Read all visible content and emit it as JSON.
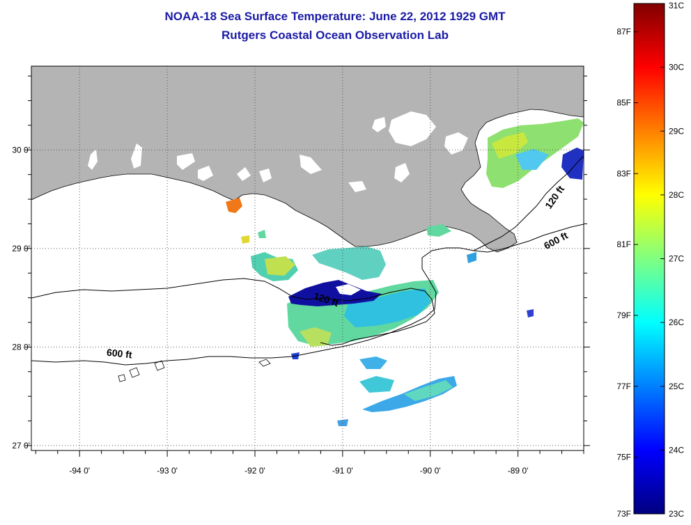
{
  "title": "NOAA-18 Sea Surface Temperature:  June 22, 2012 1929 GMT",
  "subtitle": "Rutgers Coastal Ocean Observation Lab",
  "map": {
    "lon_ticks": [
      {
        "value": -94,
        "label": "-94 0'"
      },
      {
        "value": -93,
        "label": "-93 0'"
      },
      {
        "value": -92,
        "label": "-92 0'"
      },
      {
        "value": -91,
        "label": "-91 0'"
      },
      {
        "value": -90,
        "label": "-90 0'"
      },
      {
        "value": -89,
        "label": "-89 0'"
      }
    ],
    "lat_ticks": [
      {
        "value": 30,
        "label": "30 0'"
      },
      {
        "value": 29,
        "label": "29 0'"
      },
      {
        "value": 28,
        "label": "28 0'"
      },
      {
        "value": 27,
        "label": "27 0'"
      }
    ],
    "lon_range": [
      -94.55,
      -88.25
    ],
    "lat_range": [
      26.95,
      30.85
    ],
    "grid": "dotted",
    "land_color": "#b4b4b4",
    "contour_labels": [
      {
        "text": "120 ft",
        "lon": -91.2,
        "lat": 28.45,
        "angle": 18
      },
      {
        "text": "600 ft",
        "lon": -93.55,
        "lat": 27.9,
        "angle": 6
      },
      {
        "text": "120 ft",
        "lon": -88.55,
        "lat": 29.5,
        "angle": -55
      },
      {
        "text": "600 ft",
        "lon": -88.55,
        "lat": 29.05,
        "angle": -28
      }
    ]
  },
  "colorbar": {
    "min_c": 23,
    "max_c": 31,
    "stops": [
      "#000080",
      "#0000ff",
      "#0080ff",
      "#00ffff",
      "#80ff80",
      "#ffff00",
      "#ff8000",
      "#ff0000",
      "#800000"
    ],
    "celsius_ticks": [
      "31C",
      "30C",
      "29C",
      "28C",
      "27C",
      "26C",
      "25C",
      "24C",
      "23C"
    ],
    "fahrenheit_ticks": [
      {
        "label": "87F",
        "value_f": 87.0
      },
      {
        "label": "85F",
        "value_f": 85.0
      },
      {
        "label": "83F",
        "value_f": 83.0
      },
      {
        "label": "81F",
        "value_f": 81.0
      },
      {
        "label": "79F",
        "value_f": 79.0
      },
      {
        "label": "77F",
        "value_f": 77.0
      },
      {
        "label": "75F",
        "value_f": 75.0
      },
      {
        "label": "73F",
        "value_f": 73.4
      }
    ]
  }
}
